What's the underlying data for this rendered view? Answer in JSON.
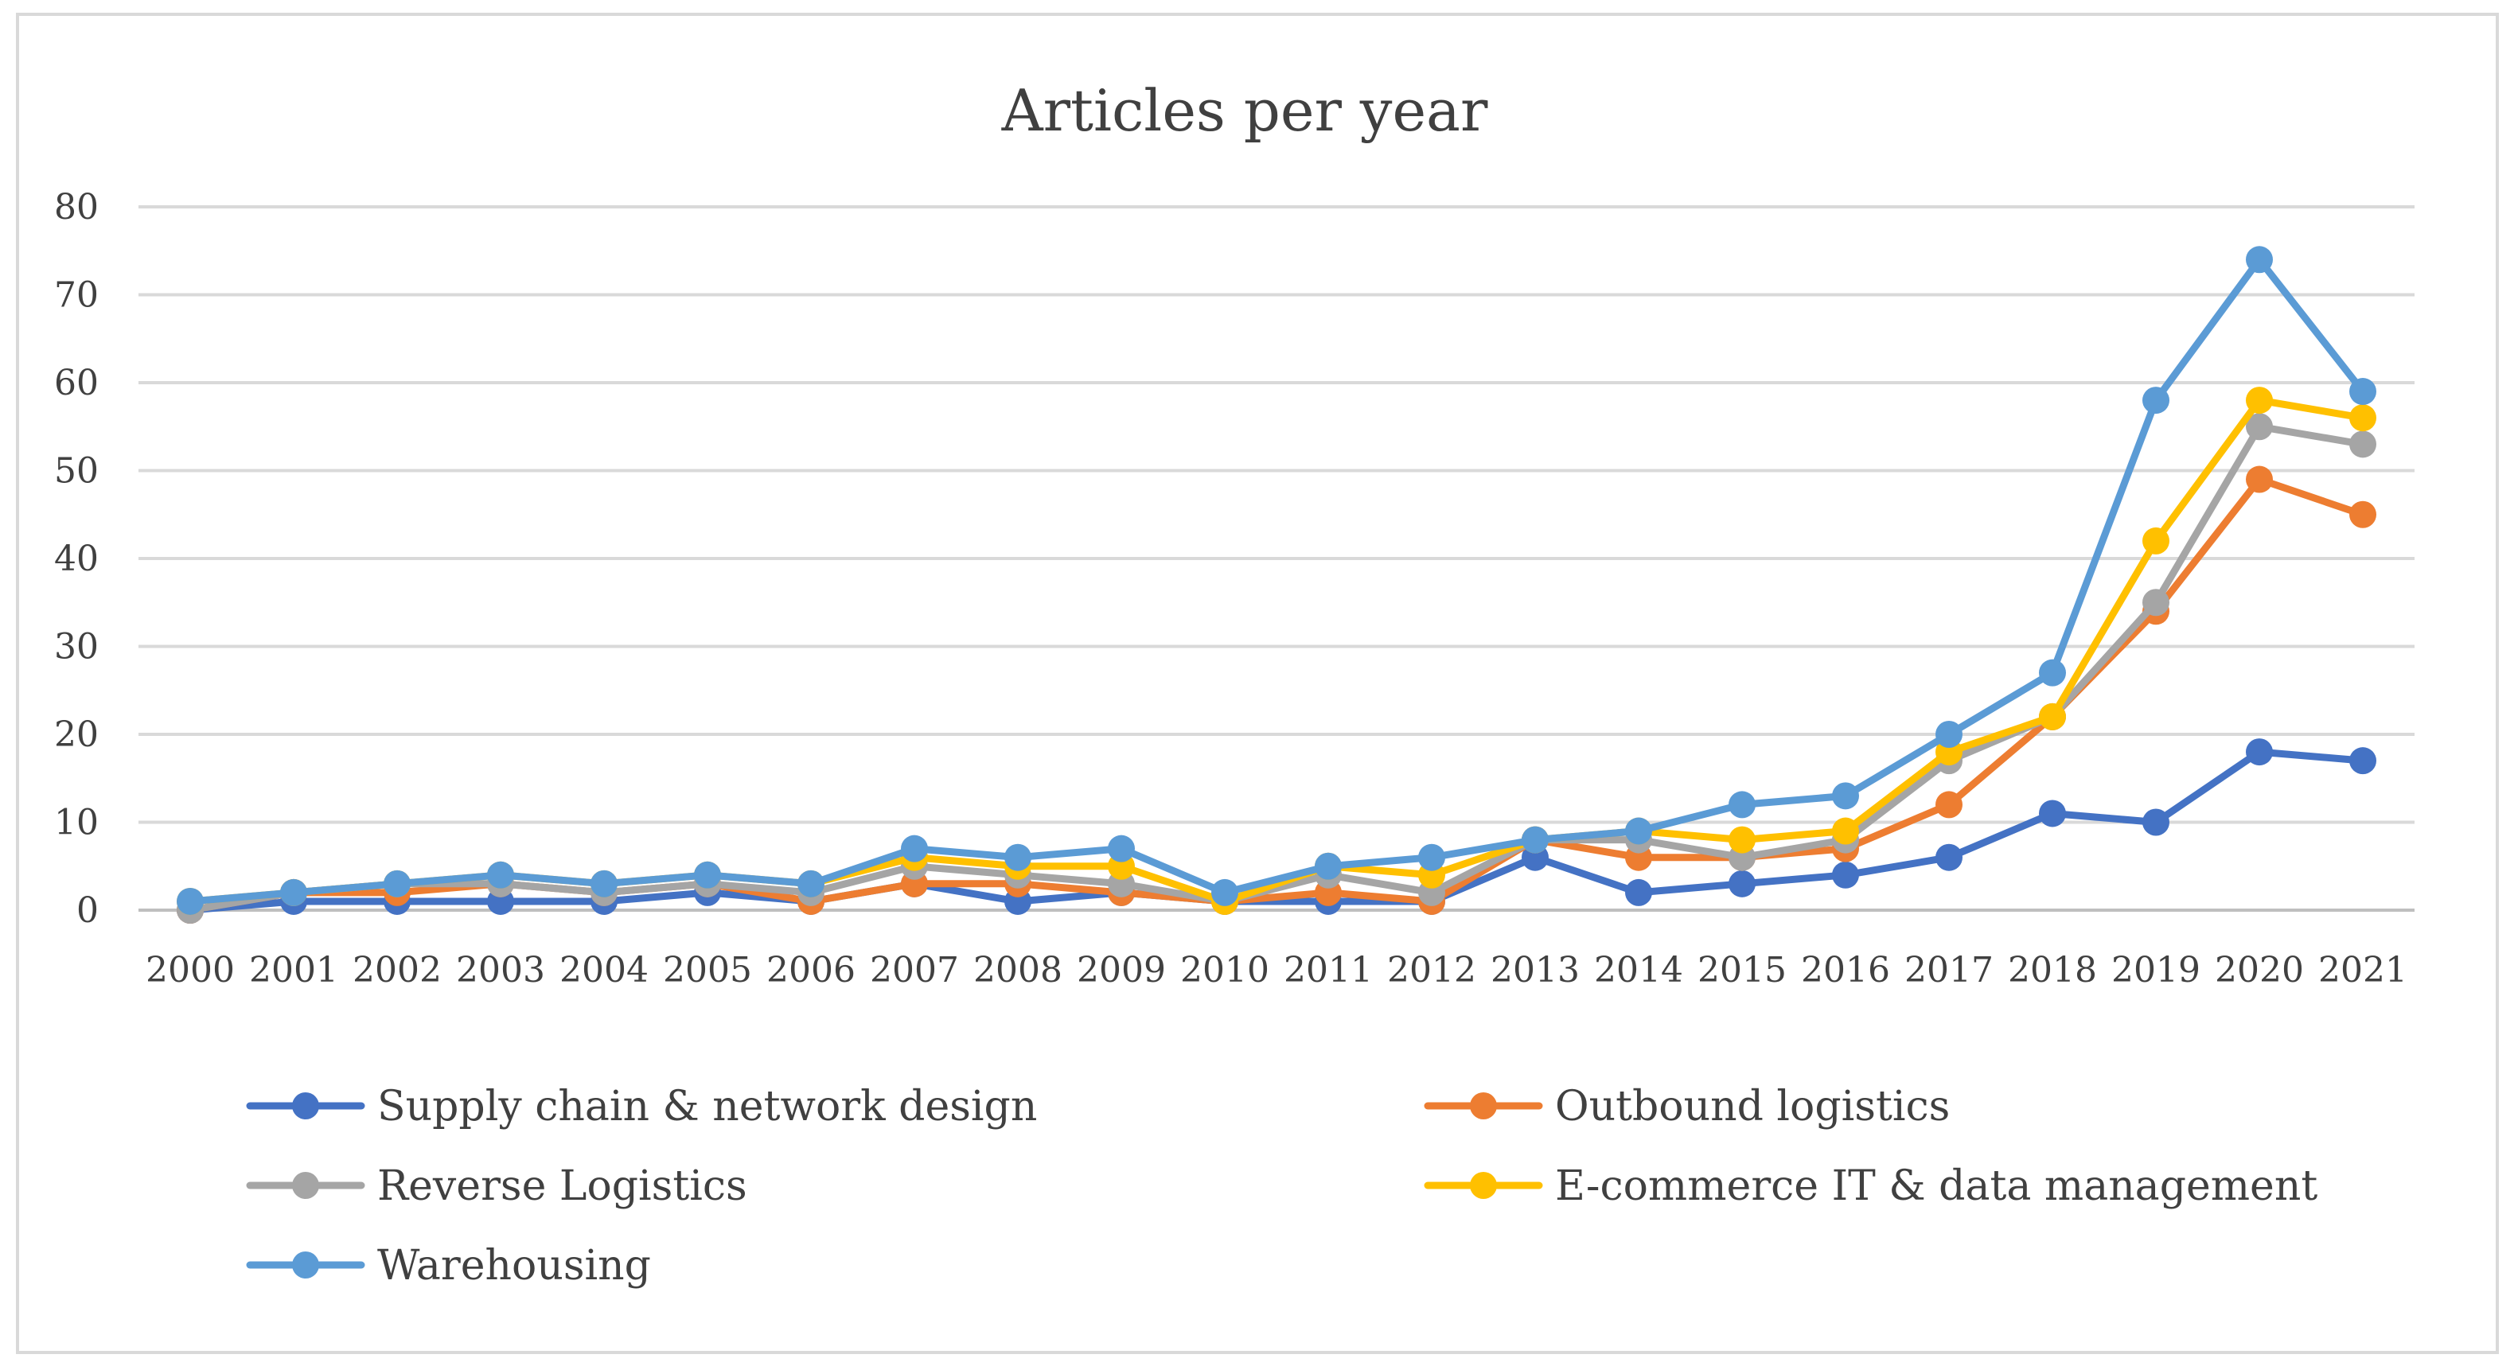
{
  "chart_data": {
    "type": "line",
    "title": "Articles per year",
    "xlabel": "",
    "ylabel": "",
    "ylim": [
      0,
      80
    ],
    "yticks": [
      0,
      10,
      20,
      30,
      40,
      50,
      60,
      70,
      80
    ],
    "grid": true,
    "legend_position": "bottom",
    "categories": [
      "2000",
      "2001",
      "2002",
      "2003",
      "2004",
      "2005",
      "2006",
      "2007",
      "2008",
      "2009",
      "2010",
      "2011",
      "2012",
      "2013",
      "2014",
      "2015",
      "2016",
      "2017",
      "2018",
      "2019",
      "2020",
      "2021"
    ],
    "series": [
      {
        "name": "Supply chain & network design",
        "color": "#4472c4",
        "values": [
          0,
          1,
          1,
          1,
          1,
          2,
          1,
          3,
          1,
          2,
          1,
          1,
          1,
          6,
          2,
          3,
          4,
          6,
          11,
          10,
          18,
          17
        ]
      },
      {
        "name": "Outbound logistics",
        "color": "#ed7d31",
        "values": [
          0,
          2,
          2,
          3,
          2,
          3,
          1,
          3,
          3,
          2,
          1,
          2,
          1,
          8,
          6,
          6,
          7,
          12,
          22,
          34,
          49,
          45
        ]
      },
      {
        "name": "Reverse Logistics",
        "color": "#a5a5a5",
        "values": [
          0,
          2,
          3,
          3,
          2,
          3,
          2,
          5,
          4,
          3,
          1,
          4,
          2,
          8,
          8,
          6,
          8,
          17,
          22,
          35,
          55,
          53
        ]
      },
      {
        "name": "E-commerce IT & data management",
        "color": "#ffc000",
        "values": [
          1,
          2,
          3,
          4,
          3,
          4,
          3,
          6,
          5,
          5,
          1,
          5,
          4,
          8,
          9,
          8,
          9,
          18,
          22,
          42,
          58,
          56
        ]
      },
      {
        "name": "Warehousing",
        "color": "#5b9bd5",
        "values": [
          1,
          2,
          3,
          4,
          3,
          4,
          3,
          7,
          6,
          7,
          2,
          5,
          6,
          8,
          9,
          12,
          13,
          20,
          27,
          58,
          74,
          59
        ]
      }
    ]
  }
}
